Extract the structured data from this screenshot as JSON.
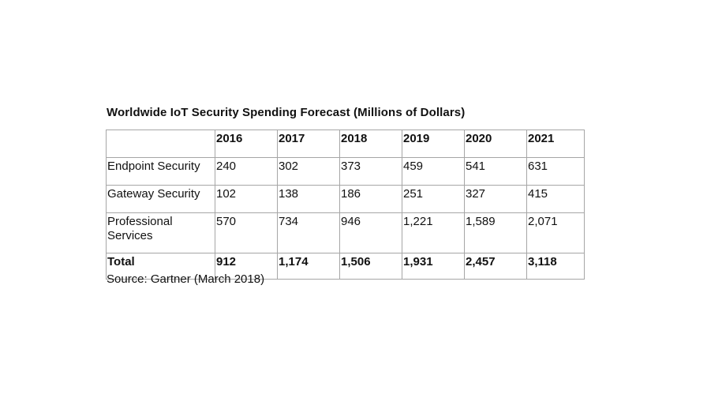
{
  "title": "Worldwide IoT Security Spending Forecast (Millions of Dollars)",
  "table": {
    "header": [
      "",
      "2016",
      "2017",
      "2018",
      "2019",
      "2020",
      "2021"
    ],
    "rows": [
      [
        "Endpoint Security",
        "240",
        "302",
        "373",
        "459",
        "541",
        "631"
      ],
      [
        "Gateway Security",
        "102",
        "138",
        "186",
        "251",
        "327",
        "415"
      ],
      [
        "Professional Services",
        "570",
        "734",
        "946",
        "1,221",
        "1,589",
        "2,071"
      ]
    ],
    "total": [
      "Total",
      "912",
      "1,174",
      "1,506",
      "1,931",
      "2,457",
      "3,118"
    ]
  },
  "source": "Source: Gartner (March 2018)"
}
